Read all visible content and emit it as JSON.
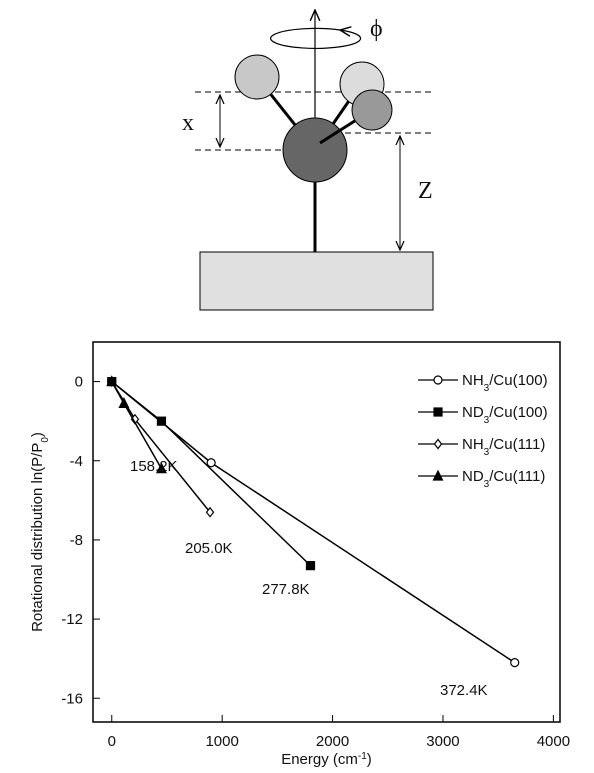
{
  "diagram": {
    "phi": "ϕ",
    "x": "x",
    "z": "Z"
  },
  "chart_data": {
    "type": "line",
    "x_label": "Energy (cm-1)",
    "y_label": "Rotational distribution ln(P/P0)",
    "xlim": [
      -170,
      4060
    ],
    "xticks": [
      0,
      1000,
      2000,
      3000,
      4000
    ],
    "ylim": [
      -17.2,
      2
    ],
    "yticks": [
      0,
      -4,
      -8,
      -12,
      -16
    ],
    "series": [
      {
        "name": "NH3/Cu(100)",
        "color": "#000000",
        "marker": "circle-open",
        "x": [
          0,
          900,
          3650
        ],
        "values": [
          0,
          -4.1,
          -14.2
        ]
      },
      {
        "name": "ND3/Cu(100)",
        "color": "#000000",
        "marker": "square-filled",
        "x": [
          0,
          450,
          1800
        ],
        "values": [
          0,
          -2,
          -9.3
        ]
      },
      {
        "name": "NH3/Cu(111)",
        "color": "#000000",
        "marker": "diamond-open",
        "x": [
          0,
          210,
          890
        ],
        "values": [
          0,
          -1.9,
          -6.6
        ]
      },
      {
        "name": "ND3/Cu(111)",
        "color": "#000000",
        "marker": "triangle-filled",
        "x": [
          0,
          110,
          450
        ],
        "values": [
          0,
          -1.1,
          -4.4
        ]
      }
    ],
    "annotations": [
      "158.2K",
      "205.0K",
      "277.8K",
      "372.4K"
    ]
  }
}
